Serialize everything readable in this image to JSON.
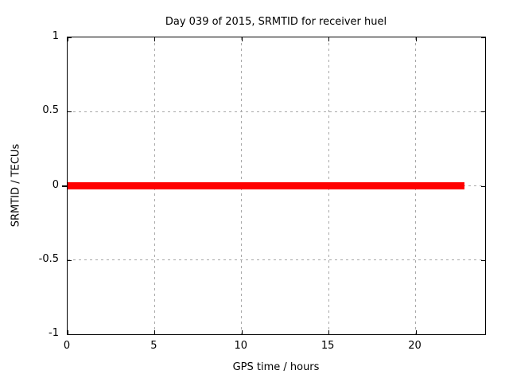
{
  "figure": {
    "background": "#ffffff"
  },
  "chart_data": {
    "type": "line",
    "title": "Day 039 of 2015, SRMTID for receiver huel",
    "xlabel": "GPS time / hours",
    "ylabel": "SRMTID / TECUs",
    "xlim": [
      0,
      24
    ],
    "ylim": [
      -1,
      1
    ],
    "x_ticks": [
      0,
      5,
      10,
      15,
      20
    ],
    "y_ticks": [
      -1,
      -0.5,
      0,
      0.5,
      1
    ],
    "grid": true,
    "legend": "none",
    "series": [
      {
        "name": "SRMTID",
        "color": "#ff0000",
        "x": [
          0,
          22.8
        ],
        "y": [
          0,
          0
        ]
      }
    ]
  },
  "colors": {
    "series": "#ff0000",
    "grid": "#a8a8a8",
    "border": "#000000",
    "text": "#000000"
  }
}
